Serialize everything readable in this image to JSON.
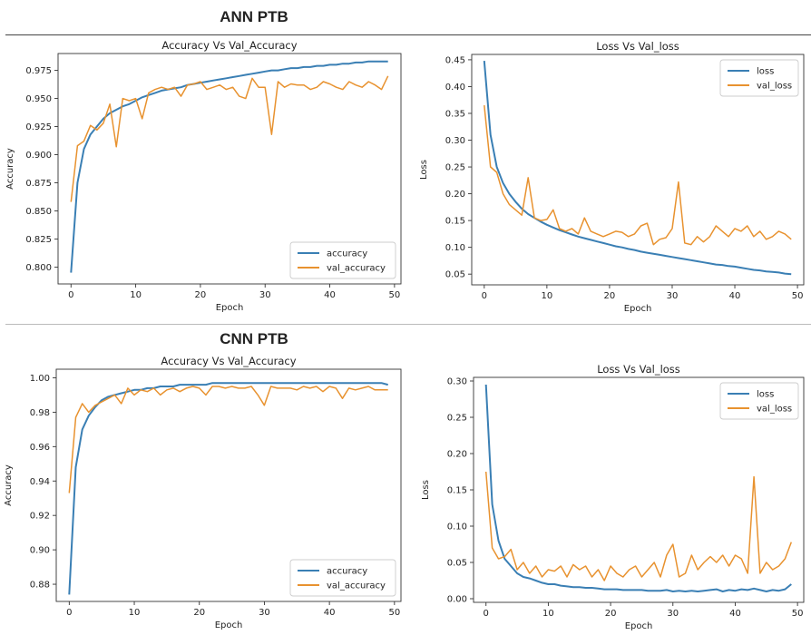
{
  "sections": [
    {
      "title": "ANN PTB"
    },
    {
      "title": "CNN PTB"
    }
  ],
  "colors": {
    "train": "#3a7fb4",
    "val": "#e8922f"
  },
  "chart_data": [
    {
      "type": "line",
      "title": "Accuracy Vs Val_Accuracy",
      "xlabel": "Epoch",
      "ylabel": "Accuracy",
      "xlim": [
        -2,
        51
      ],
      "ylim": [
        0.785,
        0.99
      ],
      "xticks": [
        "0",
        "10",
        "20",
        "30",
        "40",
        "50"
      ],
      "yticks": [
        "0.800",
        "0.825",
        "0.850",
        "0.875",
        "0.900",
        "0.925",
        "0.950",
        "0.975"
      ],
      "legend_position": "lower-right",
      "series": [
        {
          "name": "accuracy",
          "color": "#3a7fb4",
          "values": [
            0.795,
            0.875,
            0.905,
            0.918,
            0.925,
            0.932,
            0.937,
            0.94,
            0.943,
            0.945,
            0.948,
            0.951,
            0.953,
            0.955,
            0.957,
            0.958,
            0.959,
            0.96,
            0.962,
            0.963,
            0.964,
            0.965,
            0.966,
            0.967,
            0.968,
            0.969,
            0.97,
            0.971,
            0.972,
            0.973,
            0.974,
            0.975,
            0.975,
            0.976,
            0.977,
            0.977,
            0.978,
            0.978,
            0.979,
            0.979,
            0.98,
            0.98,
            0.981,
            0.981,
            0.982,
            0.982,
            0.983,
            0.983,
            0.983,
            0.983
          ]
        },
        {
          "name": "val_accuracy",
          "color": "#e8922f",
          "values": [
            0.858,
            0.908,
            0.912,
            0.926,
            0.922,
            0.928,
            0.945,
            0.907,
            0.95,
            0.948,
            0.95,
            0.932,
            0.955,
            0.958,
            0.96,
            0.958,
            0.96,
            0.952,
            0.962,
            0.963,
            0.965,
            0.958,
            0.96,
            0.962,
            0.958,
            0.96,
            0.952,
            0.95,
            0.968,
            0.96,
            0.96,
            0.918,
            0.965,
            0.96,
            0.963,
            0.962,
            0.962,
            0.958,
            0.96,
            0.965,
            0.963,
            0.96,
            0.958,
            0.965,
            0.962,
            0.96,
            0.965,
            0.962,
            0.958,
            0.97
          ]
        }
      ]
    },
    {
      "type": "line",
      "title": "Loss Vs Val_loss",
      "xlabel": "Epoch",
      "ylabel": "Loss",
      "xlim": [
        -2,
        51
      ],
      "ylim": [
        0.03,
        0.46
      ],
      "xticks": [
        "0",
        "10",
        "20",
        "30",
        "40",
        "50"
      ],
      "yticks": [
        "0.05",
        "0.10",
        "0.15",
        "0.20",
        "0.25",
        "0.30",
        "0.35",
        "0.40",
        "0.45"
      ],
      "legend_position": "upper-right",
      "series": [
        {
          "name": "loss",
          "color": "#3a7fb4",
          "values": [
            0.448,
            0.31,
            0.25,
            0.22,
            0.2,
            0.185,
            0.172,
            0.162,
            0.155,
            0.148,
            0.142,
            0.137,
            0.132,
            0.128,
            0.124,
            0.12,
            0.117,
            0.114,
            0.111,
            0.108,
            0.105,
            0.102,
            0.1,
            0.097,
            0.095,
            0.092,
            0.09,
            0.088,
            0.086,
            0.084,
            0.082,
            0.08,
            0.078,
            0.076,
            0.074,
            0.072,
            0.07,
            0.068,
            0.067,
            0.065,
            0.064,
            0.062,
            0.06,
            0.058,
            0.057,
            0.055,
            0.054,
            0.053,
            0.051,
            0.05
          ]
        },
        {
          "name": "val_loss",
          "color": "#e8922f",
          "values": [
            0.365,
            0.25,
            0.24,
            0.2,
            0.18,
            0.17,
            0.16,
            0.23,
            0.155,
            0.15,
            0.152,
            0.17,
            0.135,
            0.13,
            0.135,
            0.125,
            0.155,
            0.13,
            0.125,
            0.12,
            0.125,
            0.13,
            0.128,
            0.12,
            0.125,
            0.14,
            0.145,
            0.105,
            0.115,
            0.118,
            0.135,
            0.222,
            0.108,
            0.105,
            0.12,
            0.11,
            0.12,
            0.14,
            0.13,
            0.12,
            0.135,
            0.13,
            0.14,
            0.12,
            0.13,
            0.115,
            0.12,
            0.13,
            0.125,
            0.115
          ]
        }
      ]
    },
    {
      "type": "line",
      "title": "Accuracy Vs Val_Accuracy",
      "xlabel": "Epoch",
      "ylabel": "Accuracy",
      "xlim": [
        -2,
        51
      ],
      "ylim": [
        0.87,
        1.005
      ],
      "xticks": [
        "0",
        "10",
        "20",
        "30",
        "40",
        "50"
      ],
      "yticks": [
        "0.88",
        "0.90",
        "0.92",
        "0.94",
        "0.96",
        "0.98",
        "1.00"
      ],
      "legend_position": "lower-right",
      "series": [
        {
          "name": "accuracy",
          "color": "#3a7fb4",
          "values": [
            0.874,
            0.948,
            0.97,
            0.978,
            0.983,
            0.987,
            0.989,
            0.99,
            0.991,
            0.992,
            0.993,
            0.993,
            0.994,
            0.994,
            0.995,
            0.995,
            0.995,
            0.996,
            0.996,
            0.996,
            0.996,
            0.996,
            0.997,
            0.997,
            0.997,
            0.997,
            0.997,
            0.997,
            0.997,
            0.997,
            0.997,
            0.997,
            0.997,
            0.997,
            0.997,
            0.997,
            0.997,
            0.997,
            0.997,
            0.997,
            0.997,
            0.997,
            0.997,
            0.997,
            0.997,
            0.997,
            0.997,
            0.997,
            0.997,
            0.996
          ]
        },
        {
          "name": "val_accuracy",
          "color": "#e8922f",
          "values": [
            0.933,
            0.977,
            0.985,
            0.98,
            0.984,
            0.986,
            0.988,
            0.99,
            0.985,
            0.994,
            0.99,
            0.993,
            0.992,
            0.994,
            0.99,
            0.993,
            0.994,
            0.992,
            0.994,
            0.995,
            0.994,
            0.99,
            0.995,
            0.995,
            0.994,
            0.995,
            0.994,
            0.994,
            0.995,
            0.99,
            0.984,
            0.995,
            0.994,
            0.994,
            0.994,
            0.993,
            0.995,
            0.994,
            0.995,
            0.992,
            0.995,
            0.994,
            0.988,
            0.994,
            0.993,
            0.994,
            0.995,
            0.993,
            0.993,
            0.993
          ]
        }
      ]
    },
    {
      "type": "line",
      "title": "Loss Vs Val_loss",
      "xlabel": "Epoch",
      "ylabel": "Loss",
      "xlim": [
        -2,
        51
      ],
      "ylim": [
        -0.005,
        0.305
      ],
      "xticks": [
        "0",
        "10",
        "20",
        "30",
        "40",
        "50"
      ],
      "yticks": [
        "0.00",
        "0.05",
        "0.10",
        "0.15",
        "0.20",
        "0.25",
        "0.30"
      ],
      "legend_position": "upper-right",
      "series": [
        {
          "name": "loss",
          "color": "#3a7fb4",
          "values": [
            0.295,
            0.13,
            0.08,
            0.055,
            0.045,
            0.035,
            0.03,
            0.028,
            0.025,
            0.022,
            0.02,
            0.02,
            0.018,
            0.017,
            0.016,
            0.016,
            0.015,
            0.015,
            0.014,
            0.013,
            0.013,
            0.013,
            0.012,
            0.012,
            0.012,
            0.012,
            0.011,
            0.011,
            0.011,
            0.012,
            0.01,
            0.011,
            0.01,
            0.011,
            0.01,
            0.011,
            0.012,
            0.013,
            0.01,
            0.012,
            0.011,
            0.013,
            0.012,
            0.014,
            0.012,
            0.01,
            0.012,
            0.011,
            0.013,
            0.02
          ]
        },
        {
          "name": "val_loss",
          "color": "#e8922f",
          "values": [
            0.175,
            0.07,
            0.055,
            0.058,
            0.068,
            0.04,
            0.05,
            0.035,
            0.045,
            0.03,
            0.04,
            0.038,
            0.045,
            0.03,
            0.047,
            0.04,
            0.045,
            0.03,
            0.04,
            0.025,
            0.045,
            0.035,
            0.03,
            0.04,
            0.045,
            0.03,
            0.04,
            0.05,
            0.03,
            0.06,
            0.075,
            0.03,
            0.035,
            0.06,
            0.04,
            0.05,
            0.058,
            0.05,
            0.06,
            0.045,
            0.06,
            0.055,
            0.035,
            0.168,
            0.035,
            0.05,
            0.04,
            0.045,
            0.055,
            0.078
          ]
        }
      ]
    }
  ]
}
